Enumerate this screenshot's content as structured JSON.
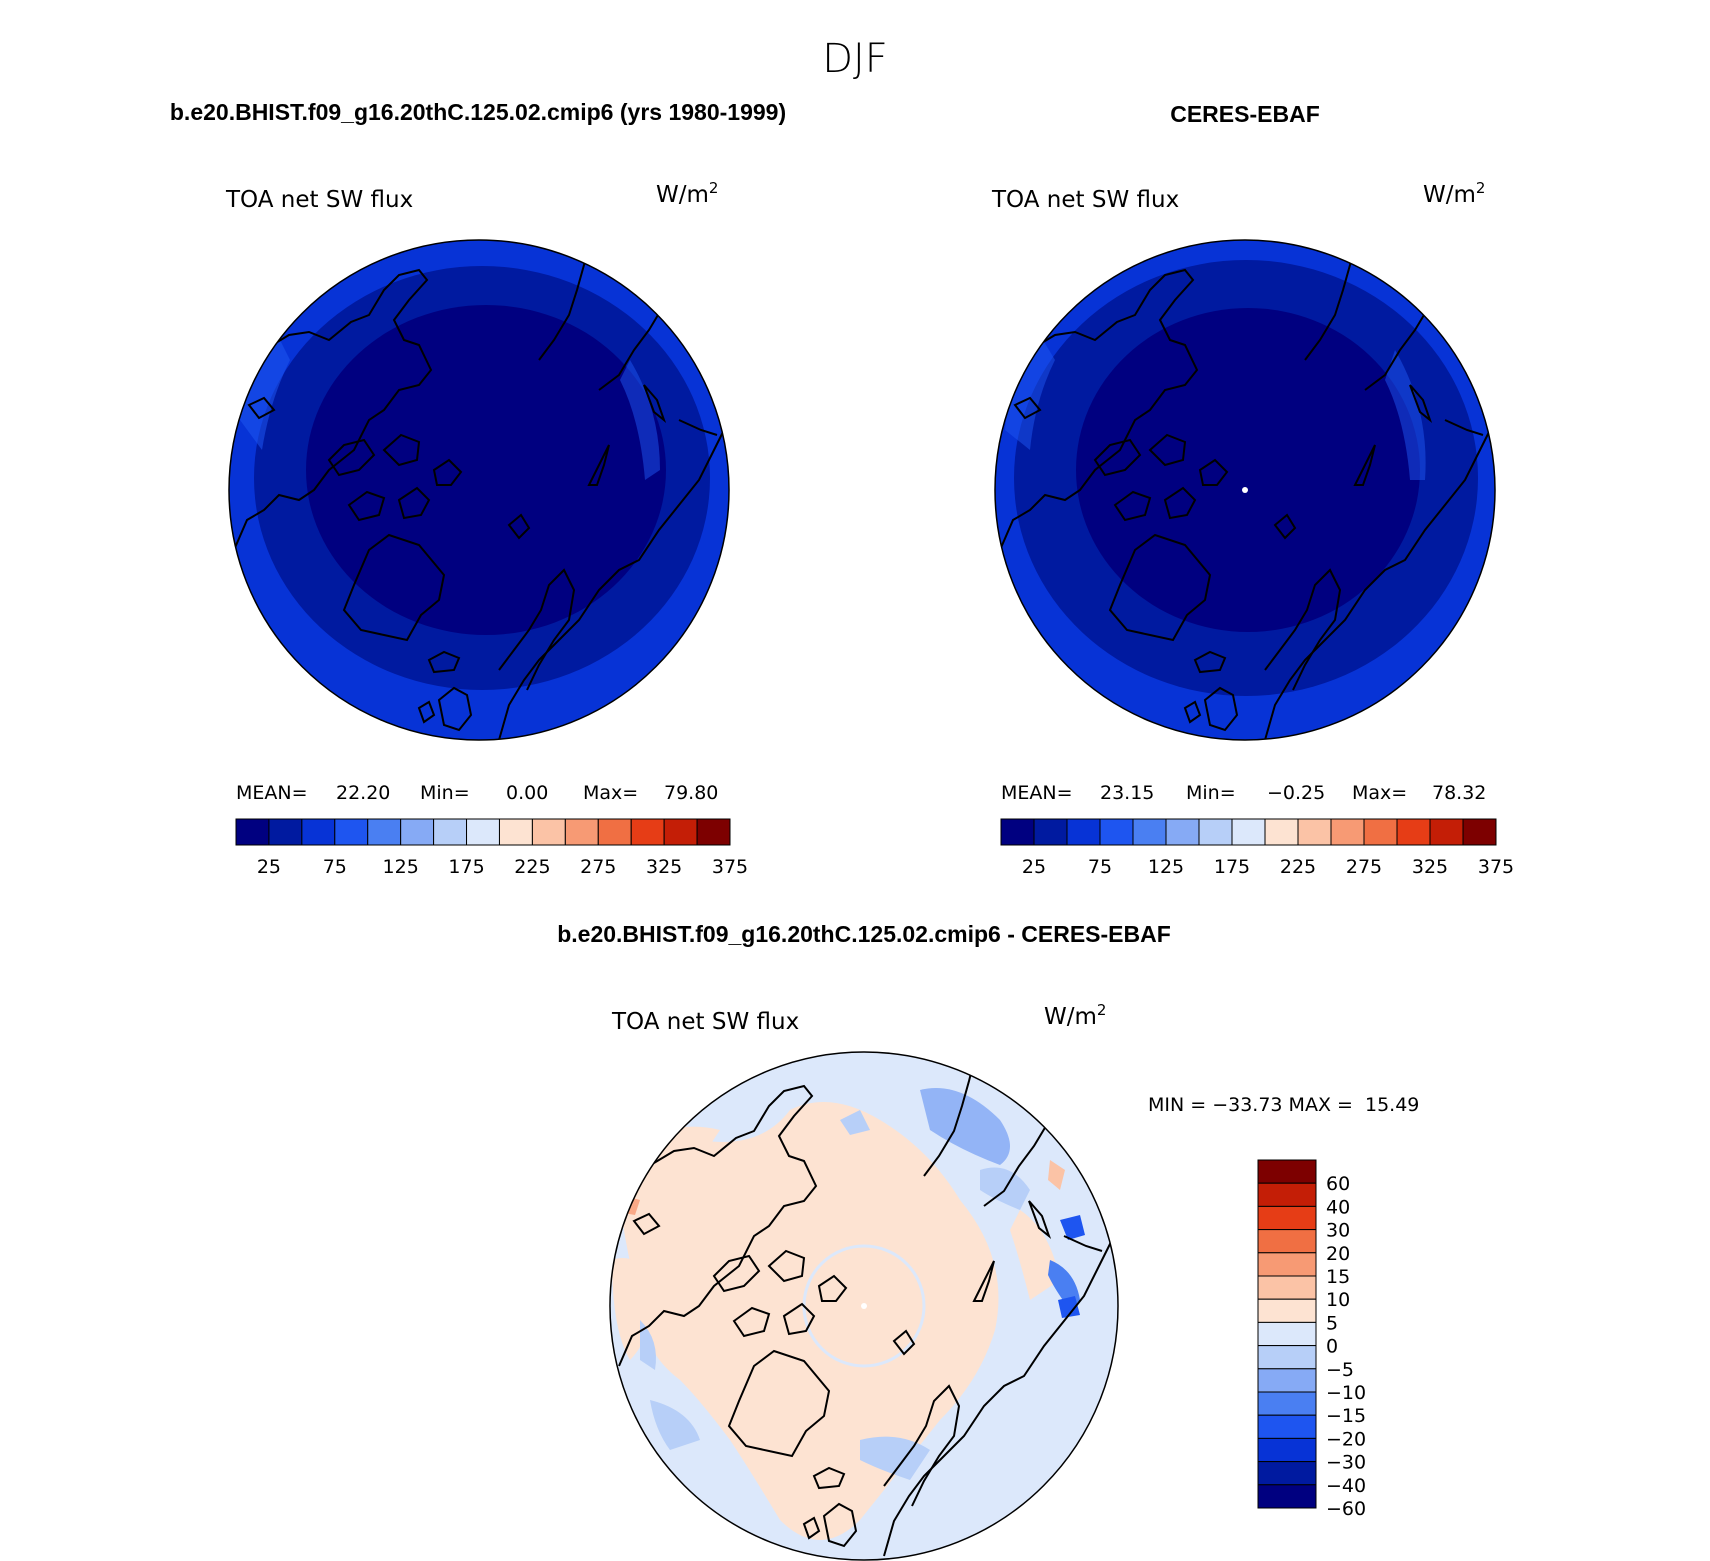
{
  "figure_title": "DJF",
  "colors": {
    "abs_scale": [
      "#000080",
      "#001aa0",
      "#0733d6",
      "#1e55f0",
      "#4a7ff2",
      "#86aaf5",
      "#b7cff8",
      "#dce8fb",
      "#fde3d2",
      "#fbc3a6",
      "#f79a74",
      "#f06f43",
      "#e63d16",
      "#c41e06",
      "#7d0000"
    ],
    "diff_scale": [
      "#000080",
      "#001aa0",
      "#0733d6",
      "#1e55f0",
      "#4a7ff2",
      "#86aaf5",
      "#b7cff8",
      "#dce8fb",
      "#fde3d2",
      "#fbc3a6",
      "#f79a74",
      "#f06f43",
      "#e63d16",
      "#c41e06",
      "#7d0000"
    ],
    "coast": "#000000"
  },
  "chart_data": [
    {
      "type": "heatmap",
      "title": "b.e20.BHIST.f09_g16.20thC.125.02.cmip6 (yrs 1980-1999)",
      "variable": "TOA net SW flux",
      "units": "W/m",
      "units_sup": "2",
      "projection": "north polar stereographic",
      "stats": {
        "mean_label": "MEAN=",
        "mean": "22.20",
        "min_label": "Min=",
        "min": "0.00",
        "max_label": "Max=",
        "max": "79.80"
      },
      "colorbar_ticks": [
        "25",
        "75",
        "125",
        "175",
        "225",
        "275",
        "325",
        "375"
      ],
      "levels": [
        0,
        25,
        50,
        75,
        100,
        125,
        150,
        175,
        200,
        225,
        250,
        275,
        300,
        325,
        350,
        375,
        400
      ]
    },
    {
      "type": "heatmap",
      "title": "CERES-EBAF",
      "variable": "TOA net SW flux",
      "units": "W/m",
      "units_sup": "2",
      "projection": "north polar stereographic",
      "stats": {
        "mean_label": "MEAN=",
        "mean": "23.15",
        "min_label": "Min=",
        "min": "−0.25",
        "max_label": "Max=",
        "max": "78.32"
      },
      "colorbar_ticks": [
        "25",
        "75",
        "125",
        "175",
        "225",
        "275",
        "325",
        "375"
      ],
      "levels": [
        0,
        25,
        50,
        75,
        100,
        125,
        150,
        175,
        200,
        225,
        250,
        275,
        300,
        325,
        350,
        375,
        400
      ]
    },
    {
      "type": "heatmap",
      "title": "b.e20.BHIST.f09_g16.20thC.125.02.cmip6 - CERES-EBAF",
      "variable": "TOA net SW flux",
      "units": "W/m",
      "units_sup": "2",
      "projection": "north polar stereographic",
      "stats_text": "MIN = −33.73 MAX =  15.49",
      "colorbar_ticks": [
        "60",
        "40",
        "30",
        "20",
        "15",
        "10",
        "5",
        "0",
        "−5",
        "−10",
        "−15",
        "−20",
        "−30",
        "−40",
        "−60"
      ],
      "levels": [
        -60,
        -40,
        -30,
        -20,
        -15,
        -10,
        -5,
        0,
        5,
        10,
        15,
        20,
        30,
        40,
        60
      ]
    }
  ]
}
